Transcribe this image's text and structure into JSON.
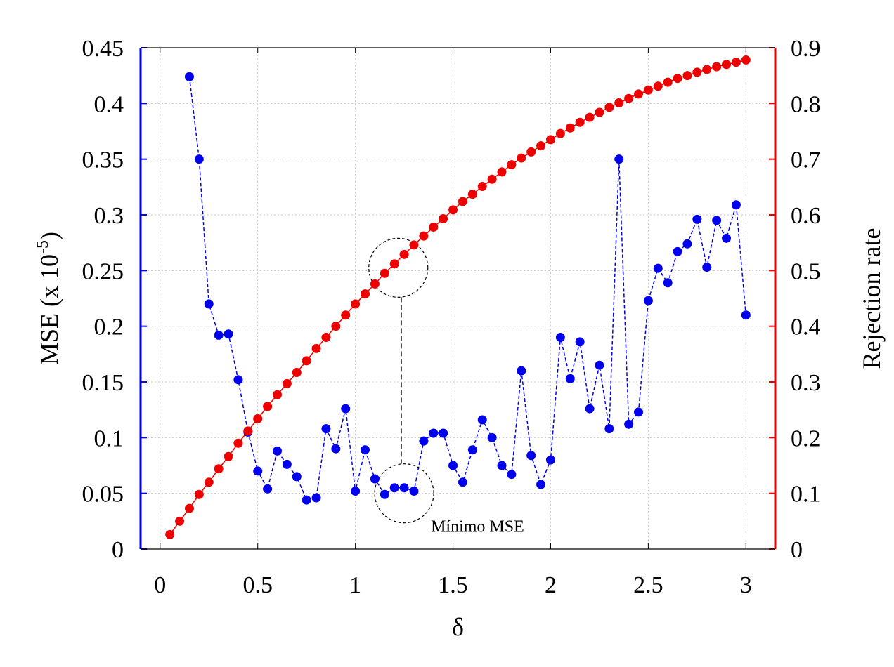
{
  "chart_data": {
    "type": "line",
    "xlabel": "δ",
    "ylabel_left": "MSE (x 10",
    "ylabel_left_exp": "-5",
    "ylabel_left_close": ")",
    "ylabel_right": "Rejection rate",
    "xlim": [
      -0.1,
      3.15
    ],
    "ylim_left": [
      0,
      0.45
    ],
    "ylim_right": [
      0,
      0.9
    ],
    "x_ticks": [
      "0",
      "0.5",
      "1",
      "1.5",
      "2",
      "2.5",
      "3"
    ],
    "y_left_ticks": [
      "0",
      "0.05",
      "0.1",
      "0.15",
      "0.2",
      "0.25",
      "0.3",
      "0.35",
      "0.4",
      "0.45"
    ],
    "y_right_ticks": [
      "0",
      "0.1",
      "0.2",
      "0.3",
      "0.4",
      "0.5",
      "0.6",
      "0.7",
      "0.8",
      "0.9"
    ],
    "grid": true,
    "colors": {
      "mse": "#0000ee",
      "rejection": "#ee0000",
      "left_axis": "#0000ee",
      "right_axis": "#ee0000"
    },
    "series": [
      {
        "axis": "left",
        "style": "dashed-markers",
        "x": [
          0.15,
          0.2,
          0.25,
          0.3,
          0.35,
          0.4,
          0.45,
          0.5,
          0.55,
          0.6,
          0.65,
          0.7,
          0.75,
          0.8,
          0.85,
          0.9,
          0.95,
          1.0,
          1.05,
          1.1,
          1.15,
          1.2,
          1.25,
          1.3,
          1.35,
          1.4,
          1.45,
          1.5,
          1.55,
          1.6,
          1.65,
          1.7,
          1.75,
          1.8,
          1.85,
          1.9,
          1.95,
          2.0,
          2.05,
          2.1,
          2.15,
          2.2,
          2.25,
          2.3,
          2.35,
          2.4,
          2.45,
          2.5,
          2.55,
          2.6,
          2.65,
          2.7,
          2.75,
          2.8,
          2.85,
          2.9,
          2.95,
          3.0
        ],
        "values": [
          0.424,
          0.35,
          0.22,
          0.192,
          0.193,
          0.152,
          0.105,
          0.07,
          0.054,
          0.088,
          0.076,
          0.065,
          0.044,
          0.046,
          0.108,
          0.09,
          0.126,
          0.052,
          0.089,
          0.063,
          0.049,
          0.055,
          0.055,
          0.052,
          0.097,
          0.104,
          0.104,
          0.075,
          0.06,
          0.089,
          0.116,
          0.1,
          0.075,
          0.067,
          0.16,
          0.084,
          0.058,
          0.08,
          0.19,
          0.153,
          0.186,
          0.126,
          0.165,
          0.108,
          0.35,
          0.112,
          0.123,
          0.223,
          0.252,
          0.239,
          0.267,
          0.274,
          0.296,
          0.253,
          0.295,
          0.279,
          0.309,
          0.21
        ]
      },
      {
        "axis": "right",
        "style": "solid-markers",
        "x": [
          0.05,
          0.1,
          0.15,
          0.2,
          0.25,
          0.3,
          0.35,
          0.4,
          0.45,
          0.5,
          0.55,
          0.6,
          0.65,
          0.7,
          0.75,
          0.8,
          0.85,
          0.9,
          0.95,
          1.0,
          1.05,
          1.1,
          1.15,
          1.2,
          1.25,
          1.3,
          1.35,
          1.4,
          1.45,
          1.5,
          1.55,
          1.6,
          1.65,
          1.7,
          1.75,
          1.8,
          1.85,
          1.9,
          1.95,
          2.0,
          2.05,
          2.1,
          2.15,
          2.2,
          2.25,
          2.3,
          2.35,
          2.4,
          2.45,
          2.5,
          2.55,
          2.6,
          2.65,
          2.7,
          2.75,
          2.8,
          2.85,
          2.9,
          2.95,
          3.0
        ],
        "values": [
          0.026,
          0.05,
          0.073,
          0.098,
          0.12,
          0.144,
          0.166,
          0.19,
          0.212,
          0.234,
          0.256,
          0.277,
          0.297,
          0.317,
          0.338,
          0.36,
          0.38,
          0.4,
          0.42,
          0.44,
          0.458,
          0.476,
          0.495,
          0.512,
          0.529,
          0.546,
          0.562,
          0.578,
          0.593,
          0.609,
          0.624,
          0.637,
          0.651,
          0.664,
          0.677,
          0.69,
          0.702,
          0.713,
          0.724,
          0.735,
          0.746,
          0.756,
          0.766,
          0.775,
          0.784,
          0.793,
          0.801,
          0.809,
          0.817,
          0.824,
          0.831,
          0.838,
          0.845,
          0.85,
          0.856,
          0.861,
          0.866,
          0.87,
          0.874,
          0.878
        ]
      }
    ],
    "annotations": {
      "minimum_label": "Mínimo MSE",
      "min_x": 1.25,
      "min_y_left": 0.05,
      "rej_circle_x": 1.22,
      "rej_circle_y_right": 0.505
    }
  }
}
